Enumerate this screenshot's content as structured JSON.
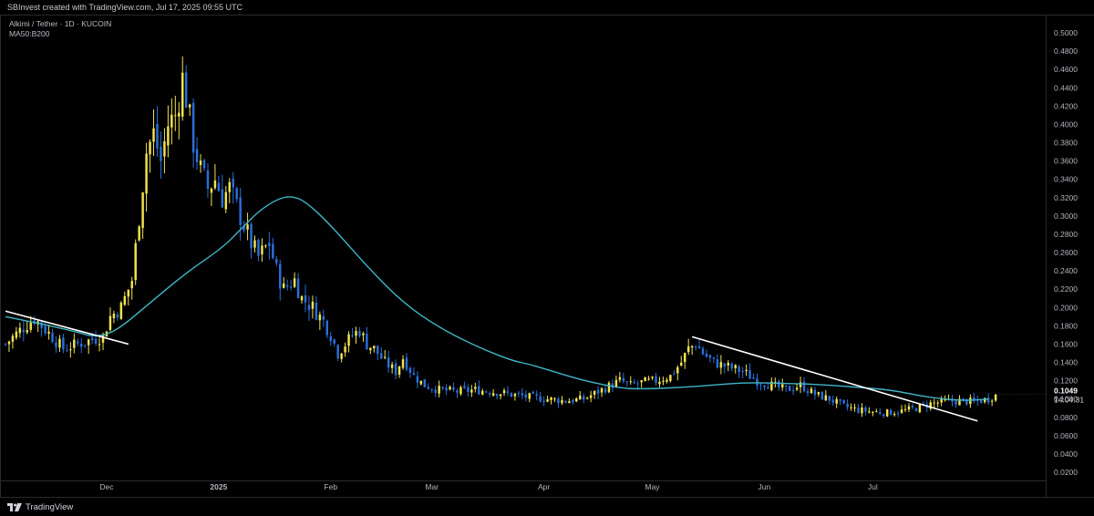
{
  "header": {
    "attribution": "SBInvest created with TradingView.com, Jul 17, 2025 09:55 UTC"
  },
  "legend": {
    "symbol_line": "Alkimi / Tether · 1D · KUCOIN",
    "indicator_line": "MA50:B200"
  },
  "footer": {
    "brand": "TradingView"
  },
  "colors": {
    "up": "#f2e34f",
    "down": "#2a6fdb",
    "ma": "#3fb6c9",
    "trendline": "#ffffff",
    "background": "#000000"
  },
  "chart_data": {
    "type": "candlestick",
    "title": "",
    "symbol": "Alkimi / Tether",
    "interval": "1D",
    "exchange": "KUCOIN",
    "ylim": [
      0.02,
      0.5
    ],
    "y_ticks": [
      "0.5000",
      "0.4800",
      "0.4600",
      "0.4400",
      "0.4200",
      "0.4000",
      "0.3800",
      "0.3600",
      "0.3400",
      "0.3200",
      "0.3000",
      "0.2800",
      "0.2600",
      "0.2400",
      "0.2200",
      "0.2000",
      "0.1800",
      "0.1600",
      "0.1400",
      "0.1200",
      "0.1000",
      "0.0800",
      "0.0600",
      "0.0400",
      "0.0200"
    ],
    "x_labels": [
      "Dec",
      "2025",
      "Feb",
      "Mar",
      "Apr",
      "May",
      "Jun",
      "Jul"
    ],
    "x_label_days": [
      18,
      49,
      80,
      108,
      139,
      169,
      200,
      230
    ],
    "day_range": [
      -10,
      267
    ],
    "last_price": {
      "value": 0.1049,
      "label": "0.1049",
      "countdown": "14:04:31"
    },
    "ma_series": {
      "name": "MA50",
      "points": [
        [
          -10,
          0.19
        ],
        [
          0,
          0.182
        ],
        [
          10,
          0.173
        ],
        [
          14,
          0.168
        ],
        [
          20,
          0.172
        ],
        [
          30,
          0.205
        ],
        [
          40,
          0.238
        ],
        [
          50,
          0.265
        ],
        [
          55,
          0.285
        ],
        [
          60,
          0.305
        ],
        [
          65,
          0.318
        ],
        [
          69,
          0.322
        ],
        [
          73,
          0.316
        ],
        [
          80,
          0.29
        ],
        [
          90,
          0.245
        ],
        [
          100,
          0.205
        ],
        [
          110,
          0.178
        ],
        [
          120,
          0.158
        ],
        [
          130,
          0.142
        ],
        [
          135,
          0.138
        ],
        [
          140,
          0.132
        ],
        [
          150,
          0.12
        ],
        [
          160,
          0.112
        ],
        [
          165,
          0.111
        ],
        [
          175,
          0.112
        ],
        [
          185,
          0.115
        ],
        [
          195,
          0.118
        ],
        [
          205,
          0.117
        ],
        [
          215,
          0.116
        ],
        [
          225,
          0.113
        ],
        [
          235,
          0.11
        ],
        [
          245,
          0.102
        ],
        [
          255,
          0.098
        ],
        [
          262,
          0.1
        ]
      ]
    },
    "trendlines": [
      {
        "from": [
          -10,
          0.196
        ],
        "to": [
          24,
          0.16
        ]
      },
      {
        "from": [
          180,
          0.168
        ],
        "to": [
          259,
          0.076
        ]
      }
    ],
    "anchor_closes": [
      [
        -10,
        0.16
      ],
      [
        -6,
        0.175
      ],
      [
        -2,
        0.188
      ],
      [
        2,
        0.172
      ],
      [
        6,
        0.155
      ],
      [
        10,
        0.16
      ],
      [
        14,
        0.165
      ],
      [
        17,
        0.168
      ],
      [
        19,
        0.19
      ],
      [
        22,
        0.2
      ],
      [
        25,
        0.23
      ],
      [
        27,
        0.3
      ],
      [
        29,
        0.37
      ],
      [
        31,
        0.39
      ],
      [
        33,
        0.36
      ],
      [
        35,
        0.4
      ],
      [
        37,
        0.41
      ],
      [
        39,
        0.45
      ],
      [
        40,
        0.43
      ],
      [
        42,
        0.38
      ],
      [
        44,
        0.35
      ],
      [
        46,
        0.33
      ],
      [
        48,
        0.34
      ],
      [
        50,
        0.32
      ],
      [
        52,
        0.33
      ],
      [
        54,
        0.31
      ],
      [
        56,
        0.29
      ],
      [
        58,
        0.27
      ],
      [
        60,
        0.255
      ],
      [
        63,
        0.27
      ],
      [
        65,
        0.24
      ],
      [
        67,
        0.22
      ],
      [
        70,
        0.23
      ],
      [
        72,
        0.21
      ],
      [
        75,
        0.2
      ],
      [
        78,
        0.185
      ],
      [
        80,
        0.17
      ],
      [
        82,
        0.15
      ],
      [
        84,
        0.16
      ],
      [
        86,
        0.17
      ],
      [
        88,
        0.175
      ],
      [
        90,
        0.16
      ],
      [
        92,
        0.155
      ],
      [
        95,
        0.14
      ],
      [
        98,
        0.13
      ],
      [
        100,
        0.145
      ],
      [
        103,
        0.125
      ],
      [
        106,
        0.115
      ],
      [
        110,
        0.11
      ],
      [
        115,
        0.108
      ],
      [
        120,
        0.11
      ],
      [
        125,
        0.108
      ],
      [
        130,
        0.105
      ],
      [
        135,
        0.102
      ],
      [
        140,
        0.1
      ],
      [
        145,
        0.098
      ],
      [
        150,
        0.1
      ],
      [
        155,
        0.11
      ],
      [
        160,
        0.12
      ],
      [
        163,
        0.115
      ],
      [
        166,
        0.118
      ],
      [
        170,
        0.12
      ],
      [
        174,
        0.125
      ],
      [
        177,
        0.14
      ],
      [
        179,
        0.155
      ],
      [
        181,
        0.16
      ],
      [
        183,
        0.15
      ],
      [
        186,
        0.14
      ],
      [
        190,
        0.135
      ],
      [
        194,
        0.13
      ],
      [
        198,
        0.12
      ],
      [
        202,
        0.115
      ],
      [
        206,
        0.11
      ],
      [
        210,
        0.115
      ],
      [
        214,
        0.105
      ],
      [
        218,
        0.1
      ],
      [
        222,
        0.092
      ],
      [
        226,
        0.088
      ],
      [
        230,
        0.086
      ],
      [
        234,
        0.085
      ],
      [
        238,
        0.087
      ],
      [
        242,
        0.09
      ],
      [
        246,
        0.095
      ],
      [
        250,
        0.097
      ],
      [
        254,
        0.098
      ],
      [
        258,
        0.097
      ],
      [
        262,
        0.1
      ],
      [
        264,
        0.1049
      ]
    ]
  }
}
